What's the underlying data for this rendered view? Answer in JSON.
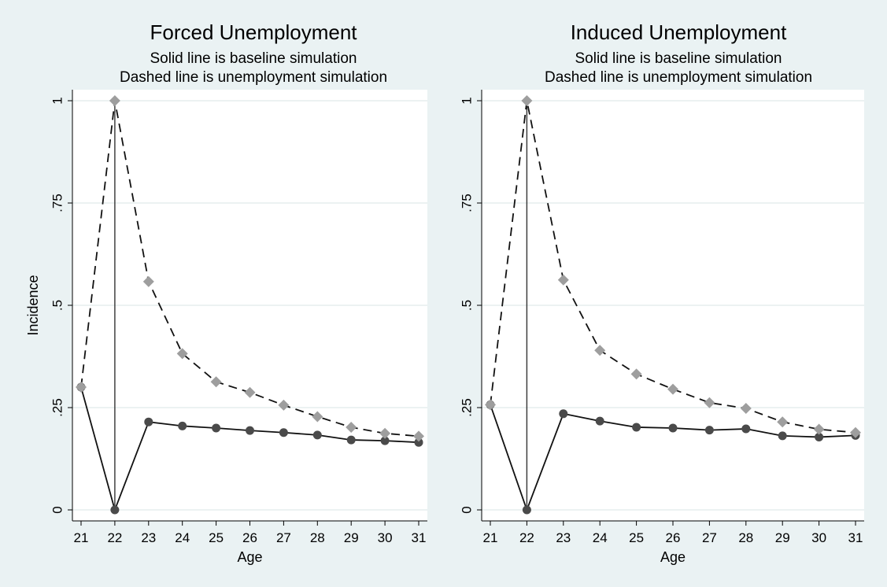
{
  "chart_data": [
    {
      "type": "line",
      "title": "Forced Unemployment",
      "subtitle": [
        "Solid line is baseline simulation",
        "Dashed line is unemployment simulation"
      ],
      "xlabel": "Age",
      "ylabel": "Incidence",
      "xlim": [
        21,
        31
      ],
      "ylim": [
        0,
        1
      ],
      "x_ticks": [
        "21",
        "22",
        "23",
        "24",
        "25",
        "26",
        "27",
        "28",
        "29",
        "30",
        "31"
      ],
      "y_ticks": [
        "0",
        ".25",
        ".5",
        ".75",
        "1"
      ],
      "y_tick_values": [
        0,
        0.25,
        0.5,
        0.75,
        1
      ],
      "grid": true,
      "reference_line_x": 22,
      "x": [
        21,
        22,
        23,
        24,
        25,
        26,
        27,
        28,
        29,
        30,
        31
      ],
      "series": [
        {
          "style": "solid",
          "marker": "circle",
          "color": "#4a4a4a",
          "values": [
            0.3,
            0.0,
            0.215,
            0.205,
            0.2,
            0.194,
            0.189,
            0.183,
            0.171,
            0.169,
            0.165
          ]
        },
        {
          "style": "dashed",
          "marker": "diamond",
          "color": "#9e9e9e",
          "values": [
            0.3,
            1.0,
            0.558,
            0.382,
            0.313,
            0.287,
            0.256,
            0.228,
            0.202,
            0.187,
            0.18
          ]
        }
      ]
    },
    {
      "type": "line",
      "title": "Induced Unemployment",
      "subtitle": [
        "Solid line is baseline simulation",
        "Dashed line is unemployment simulation"
      ],
      "xlabel": "Age",
      "ylabel": "",
      "xlim": [
        21,
        31
      ],
      "ylim": [
        0,
        1
      ],
      "x_ticks": [
        "21",
        "22",
        "23",
        "24",
        "25",
        "26",
        "27",
        "28",
        "29",
        "30",
        "31"
      ],
      "y_ticks": [
        "0",
        ".25",
        ".5",
        ".75",
        "1"
      ],
      "y_tick_values": [
        0,
        0.25,
        0.5,
        0.75,
        1
      ],
      "grid": true,
      "reference_line_x": 22,
      "x": [
        21,
        22,
        23,
        24,
        25,
        26,
        27,
        28,
        29,
        30,
        31
      ],
      "series": [
        {
          "style": "solid",
          "marker": "circle",
          "color": "#4a4a4a",
          "values": [
            0.257,
            0.0,
            0.235,
            0.217,
            0.202,
            0.2,
            0.195,
            0.198,
            0.181,
            0.178,
            0.182
          ]
        },
        {
          "style": "dashed",
          "marker": "diamond",
          "color": "#9e9e9e",
          "values": [
            0.257,
            1.0,
            0.562,
            0.39,
            0.332,
            0.295,
            0.262,
            0.248,
            0.215,
            0.197,
            0.189
          ]
        }
      ]
    }
  ]
}
